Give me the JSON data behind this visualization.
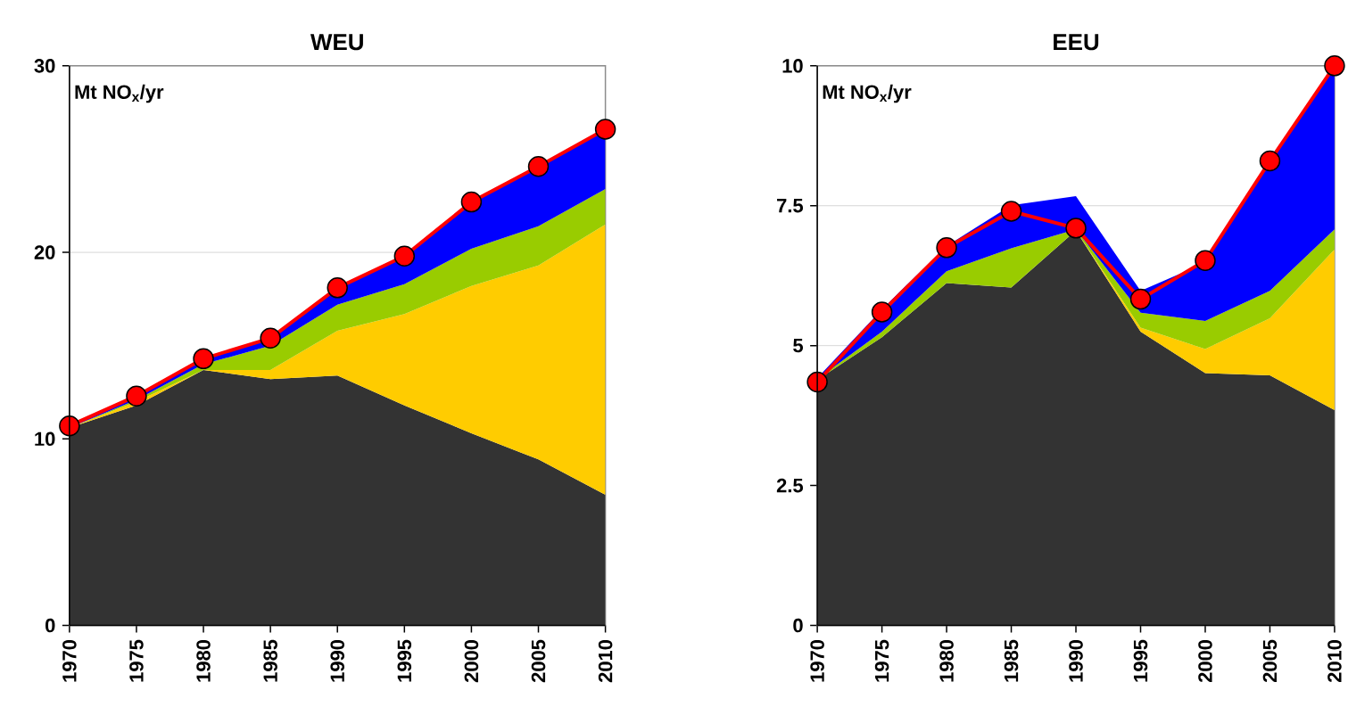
{
  "chart_data": [
    {
      "type": "area",
      "title": "WEU",
      "ylabel": "Mt NO$_{x}$/yr",
      "stacked": true,
      "grid": "y",
      "x": [
        1970,
        1975,
        1980,
        1985,
        1990,
        1995,
        2000,
        2005,
        2010
      ],
      "xlim": [
        1970,
        2010
      ],
      "xticks": [
        1970,
        1975,
        1980,
        1985,
        1990,
        1995,
        2000,
        2005,
        2010
      ],
      "ylim": [
        0,
        30
      ],
      "yticks": [
        0,
        10,
        20,
        30
      ],
      "series": [
        {
          "color": "#333333",
          "values": [
            10.6,
            11.8,
            13.7,
            13.2,
            13.4,
            11.8,
            10.3,
            8.9,
            7.0
          ]
        },
        {
          "color": "#ffcc00",
          "values": [
            0,
            0.2,
            0,
            0.5,
            2.4,
            4.9,
            7.9,
            10.4,
            14.5
          ]
        },
        {
          "color": "#99cc00",
          "values": [
            0,
            0.1,
            0.3,
            1.3,
            1.4,
            1.6,
            2.0,
            2.1,
            1.9
          ]
        },
        {
          "color": "#0000ff",
          "values": [
            0.1,
            0.2,
            0.3,
            0.4,
            0.9,
            1.5,
            2.5,
            3.2,
            3.2
          ]
        },
        {
          "type": "line",
          "marker": "circle",
          "color": "#ff0000",
          "values": [
            10.7,
            12.3,
            14.3,
            15.4,
            18.1,
            19.8,
            22.7,
            24.6,
            26.6
          ]
        }
      ]
    },
    {
      "type": "area",
      "title": "EEU",
      "ylabel": "Mt NO$_{x}$/yr",
      "stacked": true,
      "grid": "y",
      "x": [
        1970,
        1975,
        1980,
        1985,
        1990,
        1995,
        2000,
        2005,
        2010
      ],
      "xlim": [
        1970,
        2010
      ],
      "xticks": [
        1970,
        1975,
        1980,
        1985,
        1990,
        1995,
        2000,
        2005,
        2010
      ],
      "ylim": [
        0,
        10
      ],
      "yticks": [
        0,
        2.5,
        5,
        7.5,
        10
      ],
      "series": [
        {
          "color": "#333333",
          "values": [
            4.39,
            5.15,
            6.12,
            6.04,
            7.06,
            5.25,
            4.51,
            4.47,
            3.85
          ]
        },
        {
          "color": "#ffcc00",
          "values": [
            0,
            0,
            0,
            0,
            0,
            0.07,
            0.43,
            1.02,
            2.87
          ]
        },
        {
          "color": "#99cc00",
          "values": [
            0.01,
            0.1,
            0.21,
            0.7,
            0.02,
            0.27,
            0.5,
            0.49,
            0.36
          ]
        },
        {
          "color": "#0000ff",
          "values": [
            0.02,
            0.4,
            0.45,
            0.77,
            0.59,
            0.39,
            1.04,
            2.35,
            2.92
          ]
        },
        {
          "type": "line",
          "marker": "circle",
          "color": "#ff0000",
          "values": [
            4.35,
            5.6,
            6.75,
            7.4,
            7.1,
            5.83,
            6.52,
            8.3,
            10.0
          ]
        }
      ]
    }
  ]
}
